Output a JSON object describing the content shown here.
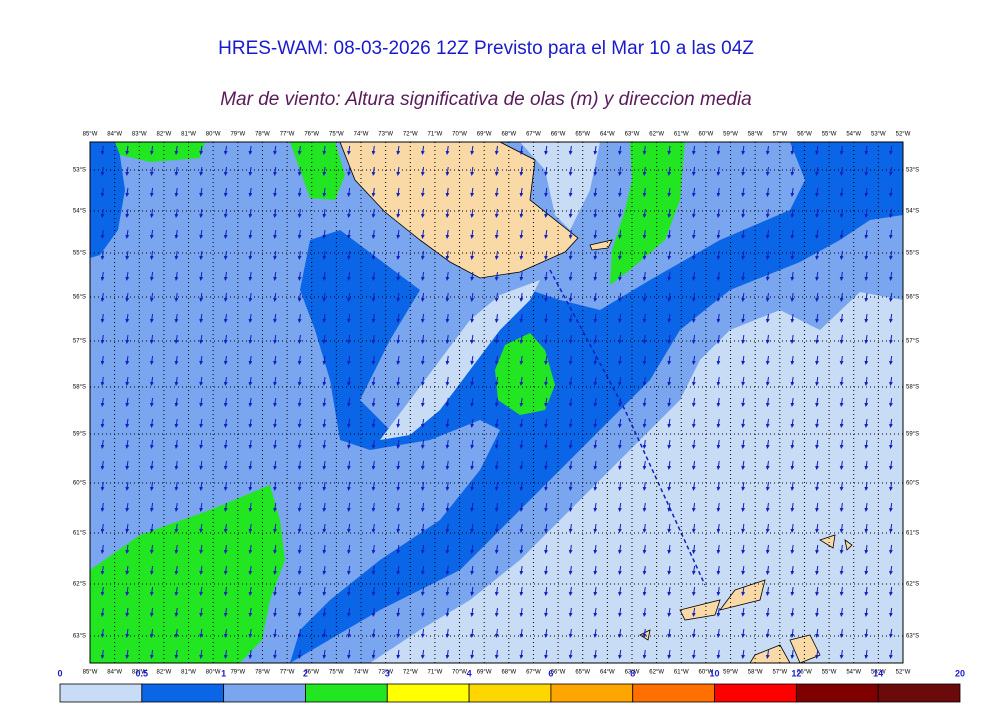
{
  "header": {
    "title": "HRES-WAM: 08-03-2026 12Z Previsto para el Mar 10 a las 04Z",
    "subtitle": "Mar de viento: Altura significativa de olas (m) y direccion media"
  },
  "map": {
    "longitude_labels": [
      "85°W",
      "84°W",
      "83°W",
      "82°W",
      "81°W",
      "80°W",
      "79°W",
      "78°W",
      "77°W",
      "76°W",
      "75°W",
      "74°W",
      "73°W",
      "72°W",
      "71°W",
      "70°W",
      "69°W",
      "68°W",
      "67°W",
      "66°W",
      "65°W",
      "64°W",
      "63°W",
      "62°W",
      "61°W",
      "60°W",
      "59°W",
      "58°W",
      "57°W",
      "56°W",
      "55°W",
      "54°W",
      "53°W",
      "52°W"
    ],
    "latitude_labels": [
      "53°S",
      "54°S",
      "55°S",
      "56°S",
      "57°S",
      "58°S",
      "59°S",
      "60°S",
      "61°S",
      "62°S",
      "63°S"
    ]
  },
  "colorbar": {
    "levels": [
      0,
      0.5,
      1,
      2,
      3,
      4,
      6,
      8,
      10,
      12,
      14,
      20
    ],
    "colors": [
      "#c8dcf5",
      "#0a66e6",
      "#7aa6f0",
      "#22e622",
      "#ffff00",
      "#ffd700",
      "#ffa500",
      "#ff7000",
      "#ff0000",
      "#800000",
      "#6b0a0a",
      "#333333"
    ]
  }
}
